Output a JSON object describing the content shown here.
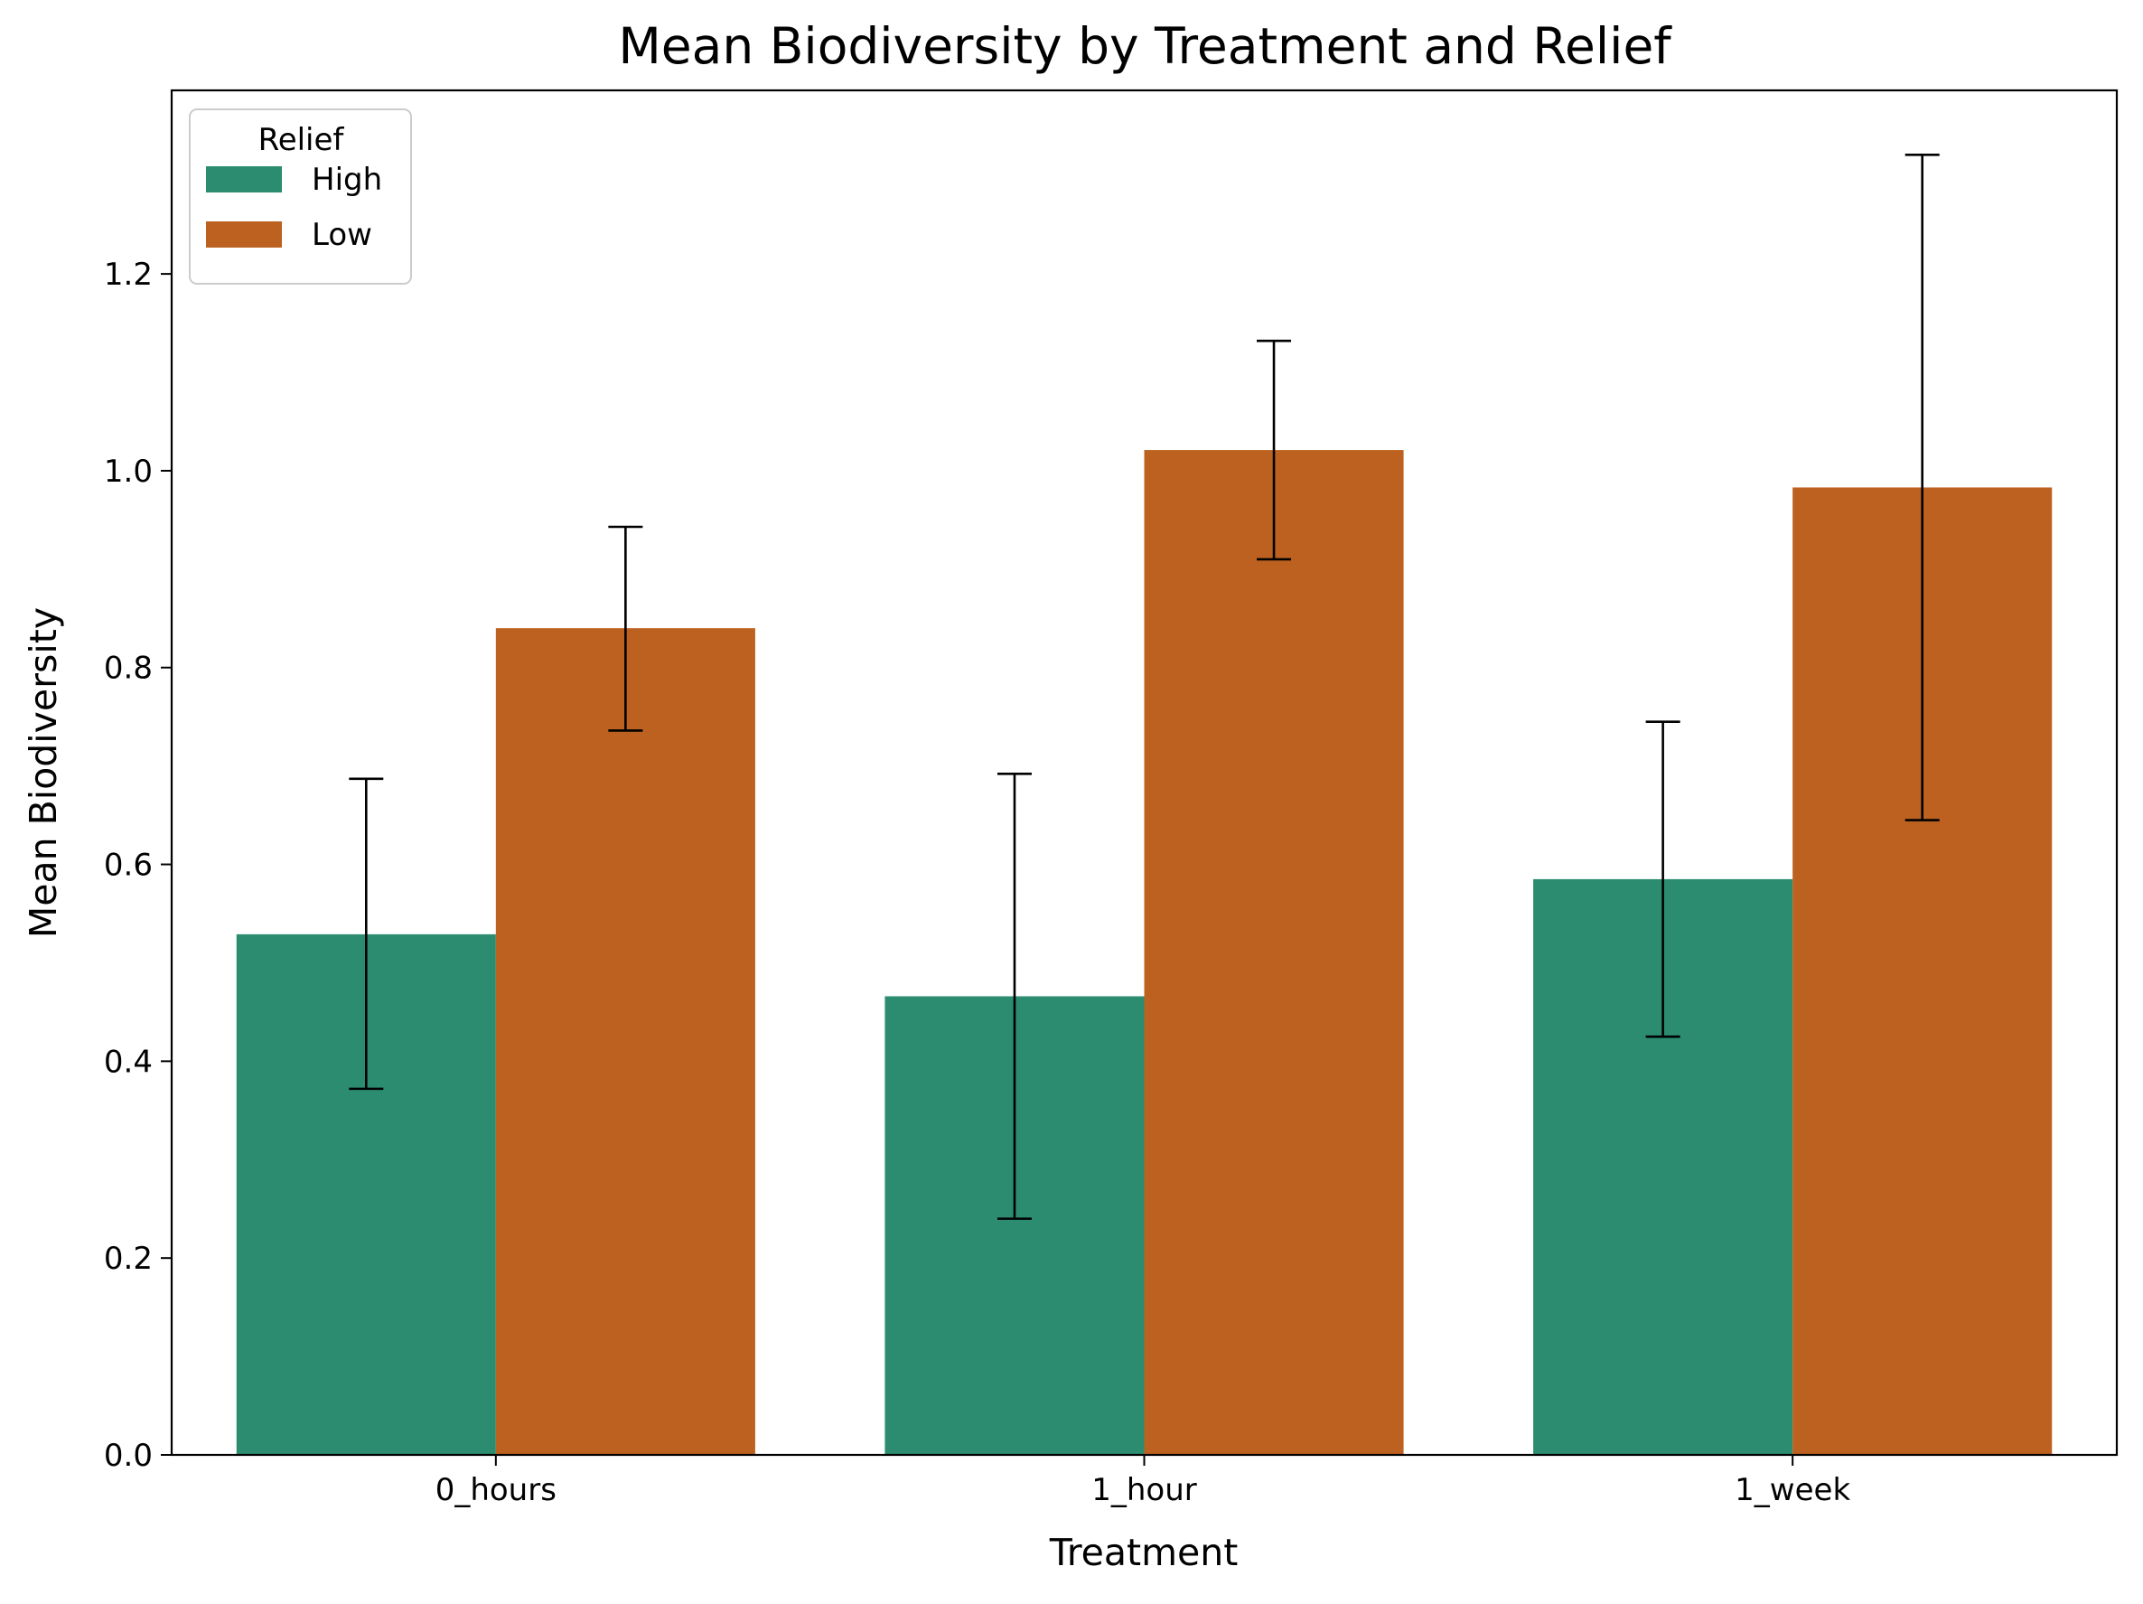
{
  "chart_data": {
    "type": "bar",
    "title": "Mean Biodiversity by Treatment and Relief",
    "xlabel": "Treatment",
    "ylabel": "Mean Biodiversity",
    "categories": [
      "0_hours",
      "1_hour",
      "1_week"
    ],
    "series": [
      {
        "name": "High",
        "color": "#2b8c6f",
        "values": [
          0.529,
          0.466,
          0.585
        ],
        "error_low": [
          0.372,
          0.24,
          0.425
        ],
        "error_high": [
          0.687,
          0.692,
          0.745
        ]
      },
      {
        "name": "Low",
        "color": "#bd6120",
        "values": [
          0.84,
          1.021,
          0.983
        ],
        "error_low": [
          0.736,
          0.91,
          0.645
        ],
        "error_high": [
          0.943,
          1.132,
          1.321
        ]
      }
    ],
    "ylim": [
      0,
      1.3865
    ],
    "yticks": [
      0.0,
      0.2,
      0.4,
      0.6,
      0.8,
      1.0,
      1.2
    ],
    "ytick_labels": [
      "0.0",
      "0.2",
      "0.4",
      "0.6",
      "0.8",
      "1.0",
      "1.2"
    ],
    "legend": {
      "title": "Relief",
      "placement": "top-left",
      "entries": [
        "High",
        "Low"
      ]
    },
    "grid": false
  }
}
